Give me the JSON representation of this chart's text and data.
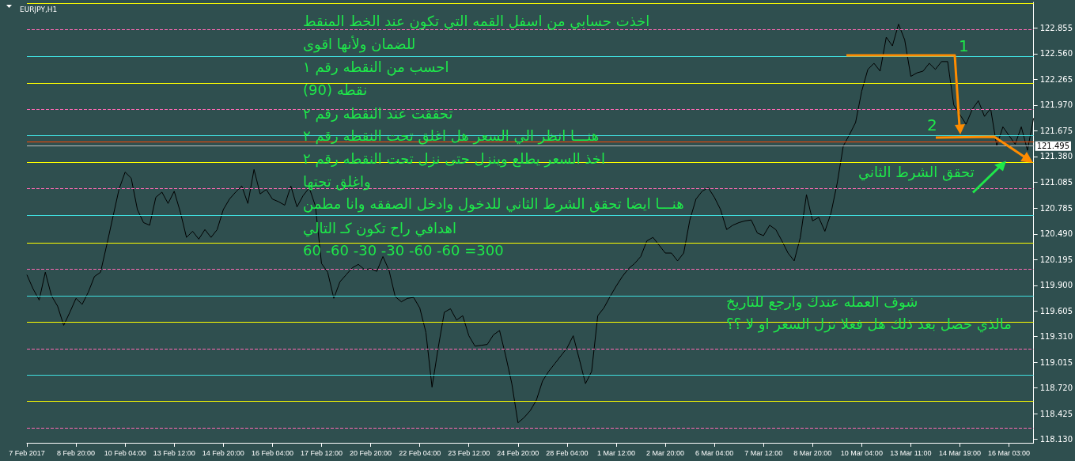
{
  "chart_data": {
    "type": "line",
    "title": "EURJPY,H1",
    "categories": [
      "7 Feb 2017",
      null,
      null,
      null,
      null,
      null,
      null,
      null,
      "8 Feb 20:00",
      null,
      null,
      null,
      null,
      null,
      null,
      null,
      "10 Feb 04:00",
      null,
      null,
      null,
      null,
      null,
      null,
      null,
      "13 Feb 12:00",
      null,
      null,
      null,
      null,
      null,
      null,
      null,
      "14 Feb 20:00",
      null,
      null,
      null,
      null,
      null,
      null,
      null,
      "16 Feb 04:00",
      null,
      null,
      null,
      null,
      null,
      null,
      null,
      "17 Feb 12:00",
      null,
      null,
      null,
      null,
      null,
      null,
      null,
      "20 Feb 20:00",
      null,
      null,
      null,
      null,
      null,
      null,
      null,
      "22 Feb 04:00",
      null,
      null,
      null,
      null,
      null,
      null,
      null,
      "23 Feb 12:00",
      null,
      null,
      null,
      null,
      null,
      null,
      null,
      "24 Feb 20:00",
      null,
      null,
      null,
      null,
      null,
      null,
      null,
      "28 Feb 04:00",
      null,
      null,
      null,
      null,
      null,
      null,
      null,
      "1 Mar 12:00",
      null,
      null,
      null,
      null,
      null,
      null,
      null,
      "2 Mar 20:00",
      null,
      null,
      null,
      null,
      null,
      null,
      null,
      "6 Mar 04:00",
      null,
      null,
      null,
      null,
      null,
      null,
      null,
      "7 Mar 12:00",
      null,
      null,
      null,
      null,
      null,
      null,
      null,
      "8 Mar 20:00",
      null,
      null,
      null,
      null,
      null,
      null,
      null,
      "10 Mar 04:00",
      null,
      null,
      null,
      null,
      null,
      null,
      null,
      "13 Mar 11:00",
      null,
      null,
      null,
      null,
      null,
      null,
      null,
      "14 Mar 19:00",
      null,
      null,
      null,
      null,
      null,
      null,
      null,
      "16 Mar 03:00",
      null,
      null,
      null,
      null
    ],
    "series": [
      {
        "color": "#000000",
        "values": [
          120.02,
          119.86,
          119.73,
          120.05,
          119.78,
          119.66,
          119.44,
          119.59,
          119.75,
          119.68,
          119.82,
          120.0,
          120.05,
          120.36,
          120.68,
          121.0,
          121.2,
          121.13,
          120.77,
          120.62,
          120.59,
          120.91,
          120.97,
          120.84,
          120.98,
          120.74,
          120.45,
          120.52,
          120.43,
          120.54,
          120.45,
          120.54,
          120.77,
          120.89,
          120.97,
          121.04,
          120.84,
          121.23,
          120.95,
          121.0,
          120.89,
          120.86,
          120.82,
          121.04,
          120.8,
          120.93,
          121.02,
          120.81,
          120.15,
          120.05,
          119.75,
          119.94,
          120.02,
          120.1,
          120.14,
          120.08,
          120.09,
          120.06,
          120.23,
          120.07,
          119.77,
          119.71,
          119.75,
          119.76,
          119.64,
          119.36,
          118.73,
          119.18,
          119.59,
          119.63,
          119.5,
          119.55,
          119.32,
          119.2,
          119.21,
          119.22,
          119.33,
          119.38,
          119.09,
          118.77,
          118.32,
          118.38,
          118.46,
          118.58,
          118.8,
          118.91,
          119.0,
          119.09,
          119.18,
          119.32,
          119.05,
          118.77,
          118.91,
          119.55,
          119.64,
          119.77,
          119.89,
          120.0,
          120.09,
          120.15,
          120.23,
          120.41,
          120.45,
          120.36,
          120.27,
          120.27,
          120.18,
          120.27,
          120.65,
          120.89,
          120.98,
          121.02,
          120.91,
          120.77,
          120.54,
          120.59,
          120.62,
          120.64,
          120.65,
          120.5,
          120.47,
          120.59,
          120.54,
          120.41,
          120.27,
          120.18,
          120.45,
          120.94,
          120.64,
          120.68,
          120.52,
          120.73,
          121.07,
          121.5,
          121.63,
          121.77,
          122.13,
          122.38,
          122.45,
          122.36,
          122.75,
          122.65,
          122.9,
          122.72,
          122.3,
          122.34,
          122.36,
          122.45,
          122.38,
          122.47,
          122.47,
          121.97,
          121.86,
          121.75,
          121.92,
          122.02,
          121.84,
          121.93,
          121.5,
          121.72,
          121.62,
          121.52,
          121.72,
          121.45,
          121.82
        ]
      }
    ],
    "ylim": [
      118.09,
      123.15
    ],
    "yticks": [
      {
        "value": 118.13,
        "label": "118.130"
      },
      {
        "value": 118.425,
        "label": "118.425"
      },
      {
        "value": 118.72,
        "label": "118.720"
      },
      {
        "value": 119.015,
        "label": "119.015"
      },
      {
        "value": 119.31,
        "label": "119.310"
      },
      {
        "value": 119.605,
        "label": "119.605"
      },
      {
        "value": 119.9,
        "label": "119.900"
      },
      {
        "value": 120.195,
        "label": "120.195"
      },
      {
        "value": 120.49,
        "label": "120.490"
      },
      {
        "value": 120.785,
        "label": "120.785"
      },
      {
        "value": 121.085,
        "label": "121.085"
      },
      {
        "value": 121.38,
        "label": "121.380"
      },
      {
        "value": 121.675,
        "label": "121.675"
      },
      {
        "value": 121.97,
        "label": "121.970"
      },
      {
        "value": 122.265,
        "label": "122.265"
      },
      {
        "value": 122.56,
        "label": "122.560"
      },
      {
        "value": 122.855,
        "label": "122.855"
      }
    ],
    "marker": "none",
    "line_style": "solid",
    "grid": false,
    "ref_lines": [
      {
        "axis": "y",
        "value": 123.14,
        "color": "#ffff00",
        "line_style": "solid"
      },
      {
        "axis": "y",
        "value": 122.84,
        "color": "#ff69b4",
        "line_style": "dashed"
      },
      {
        "axis": "y",
        "value": 122.53,
        "color": "#40e0e0",
        "line_style": "solid"
      },
      {
        "axis": "y",
        "value": 122.22,
        "color": "#ffff00",
        "line_style": "solid"
      },
      {
        "axis": "y",
        "value": 121.92,
        "color": "#ff69b4",
        "line_style": "dashed"
      },
      {
        "axis": "y",
        "value": 121.62,
        "color": "#40e0e0",
        "line_style": "solid"
      },
      {
        "axis": "y",
        "value": 121.55,
        "color": "#ff4500",
        "line_style": "solid"
      },
      {
        "axis": "y",
        "value": 121.495,
        "label": "121.495",
        "color": "#c0c0c0",
        "line_style": "solid"
      },
      {
        "axis": "y",
        "value": 121.31,
        "color": "#ffff00",
        "line_style": "solid"
      },
      {
        "axis": "y",
        "value": 121.01,
        "color": "#ff69b4",
        "line_style": "dashed"
      },
      {
        "axis": "y",
        "value": 120.7,
        "color": "#40e0e0",
        "line_style": "solid"
      },
      {
        "axis": "y",
        "value": 120.39,
        "color": "#ffff00",
        "line_style": "solid"
      },
      {
        "axis": "y",
        "value": 120.09,
        "color": "#ff69b4",
        "line_style": "dashed"
      },
      {
        "axis": "y",
        "value": 119.78,
        "color": "#40e0e0",
        "line_style": "solid"
      },
      {
        "axis": "y",
        "value": 119.48,
        "color": "#ffff00",
        "line_style": "solid"
      },
      {
        "axis": "y",
        "value": 119.17,
        "color": "#ff69b4",
        "line_style": "dashed"
      },
      {
        "axis": "y",
        "value": 118.87,
        "color": "#40e0e0",
        "line_style": "solid"
      },
      {
        "axis": "y",
        "value": 118.57,
        "color": "#ffff00",
        "line_style": "solid"
      },
      {
        "axis": "y",
        "value": 118.26,
        "color": "#ff69b4",
        "line_style": "dashed"
      }
    ],
    "annotations": [
      "اخذت حسابي من اسفل القمه التي تكون عند الخط المنقط",
      "للضمان ولأنها اقوى",
      "احسب من النقطه رقم ١",
      "نقطه (90)",
      "تحققت عند النقطه رقم ٢",
      "هنـــا انظر الي السعر هل اغلق تحت النقطه رقم ٢",
      "اخذ السعر يطلع وينزل حتى نزل تحت النقطه رقم ٢",
      "واغلق تحتها",
      "هنـــا ايضا تحقق الشرط الثاني للدخول وادخل الصفقه وانا مطمن",
      "اهدافي راح تكون كـ التالي",
      "60 -60 -30 -30 -60 -60 =300",
      {
        "text": "تحقق الشرط الثاني",
        "y": 121.31
      },
      "شوف العمله عندك وارجع للتاريخ",
      "مالذي حصل بعد ذلك هل فعلا نزل السعر او لا ؟؟",
      "1",
      "2"
    ]
  }
}
